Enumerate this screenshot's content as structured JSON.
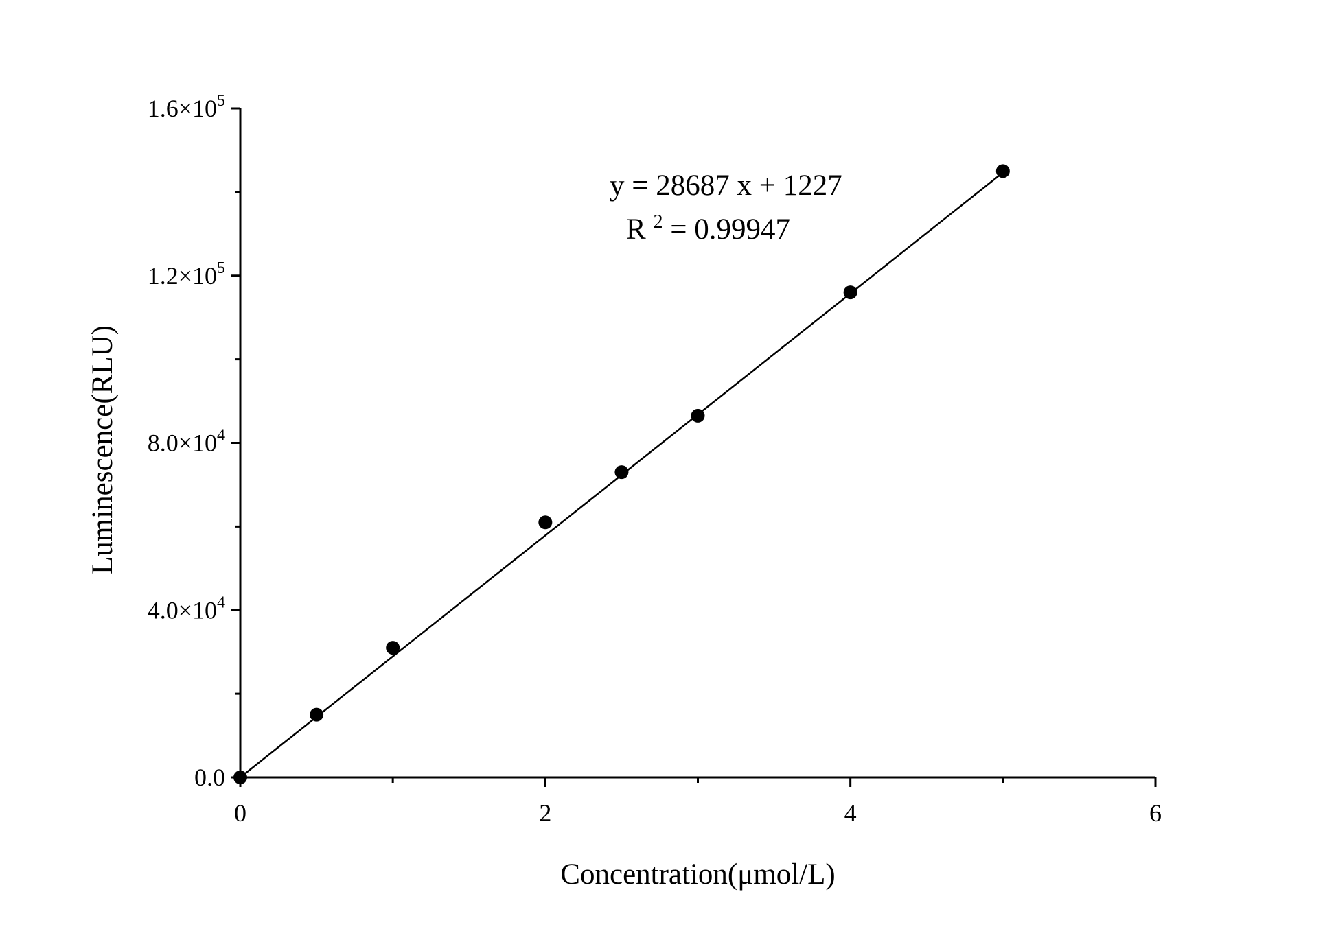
{
  "chart_data": {
    "type": "scatter",
    "title": "",
    "xlabel": "Concentration(μmol/L)",
    "ylabel": "Luminescence(RLU)",
    "xlim": [
      0,
      6
    ],
    "ylim": [
      0,
      160000
    ],
    "x_ticks": [
      {
        "value": 0,
        "label": "0"
      },
      {
        "value": 2,
        "label": "2"
      },
      {
        "value": 4,
        "label": "4"
      },
      {
        "value": 6,
        "label": "6"
      }
    ],
    "x_minor_ticks": [
      1,
      3,
      5
    ],
    "y_ticks": [
      {
        "value": 0,
        "mantissa": "0.0",
        "exponent": ""
      },
      {
        "value": 40000,
        "mantissa": "4.0×10",
        "exponent": "4"
      },
      {
        "value": 80000,
        "mantissa": "8.0×10",
        "exponent": "4"
      },
      {
        "value": 120000,
        "mantissa": "1.2×10",
        "exponent": "5"
      },
      {
        "value": 160000,
        "mantissa": "1.6×10",
        "exponent": "5"
      }
    ],
    "y_minor_ticks": [
      20000,
      60000,
      100000,
      140000
    ],
    "series": [
      {
        "x": [
          0,
          0.5,
          1,
          2,
          2.5,
          3,
          4,
          5
        ],
        "y": [
          0,
          15000,
          31000,
          61000,
          73000,
          86500,
          116000,
          145000
        ]
      }
    ],
    "fit": {
      "slope": 28687,
      "intercept": 1227,
      "x_range": [
        0,
        5
      ],
      "equation": "y = 28687 x + 1227",
      "r2_prefix": "R",
      "r2_exponent": "2",
      "r2_value": " = 0.99947"
    },
    "grid": false,
    "colors": {
      "marker": "#000000",
      "line": "#000000",
      "axis": "#000000"
    }
  }
}
